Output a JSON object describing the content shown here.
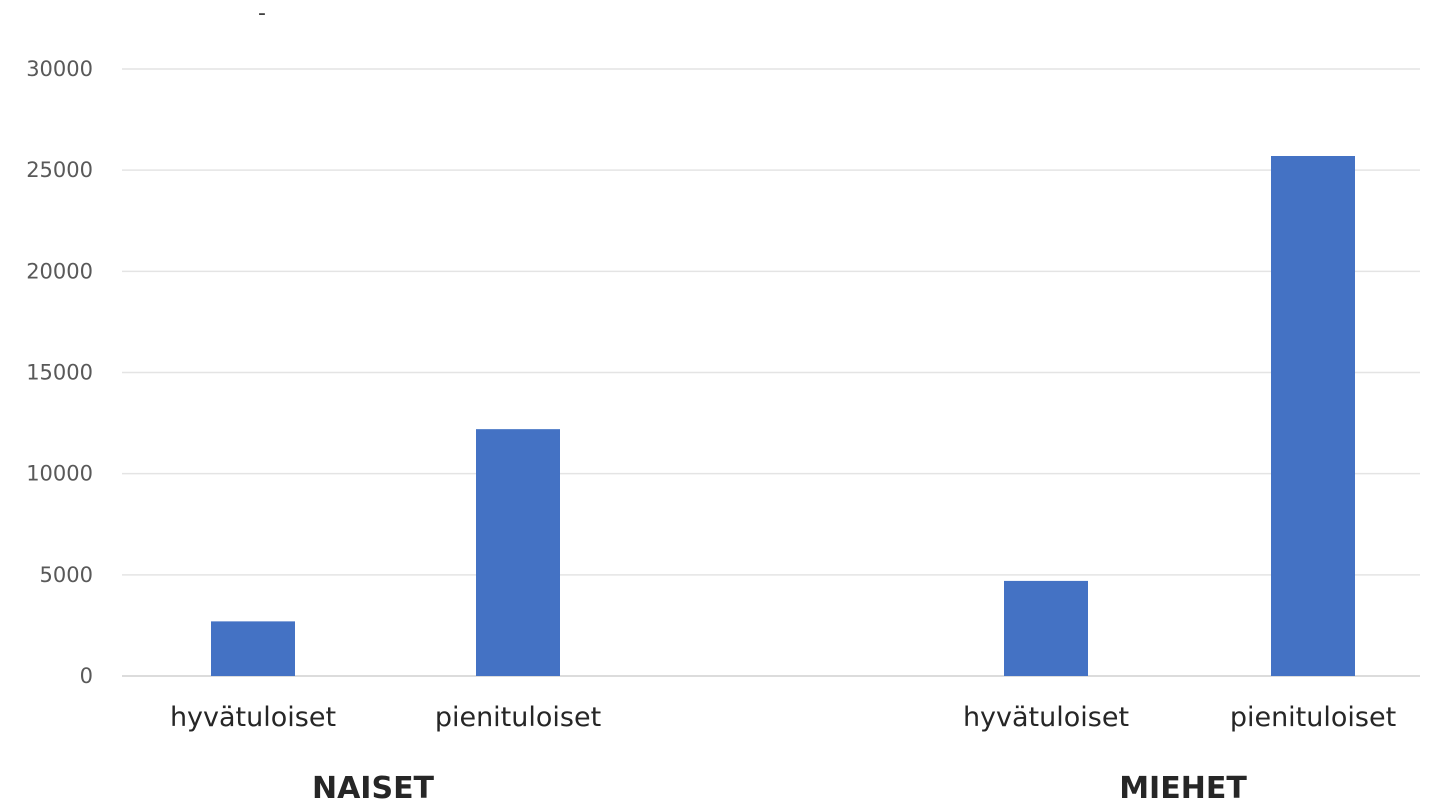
{
  "title_fragment": "-",
  "chart_data": {
    "type": "bar",
    "ylim": [
      0,
      30000
    ],
    "yticks": [
      0,
      5000,
      10000,
      15000,
      20000,
      25000,
      30000
    ],
    "grid": true,
    "bar_color": "#4472C4",
    "groups": [
      {
        "name": "NAISET",
        "categories": [
          "hyvätuloiset",
          "pienituloiset"
        ],
        "values": [
          2700,
          12200
        ]
      },
      {
        "name": "MIEHET",
        "categories": [
          "hyvätuloiset",
          "pienituloiset"
        ],
        "values": [
          4700,
          25700
        ]
      }
    ]
  }
}
